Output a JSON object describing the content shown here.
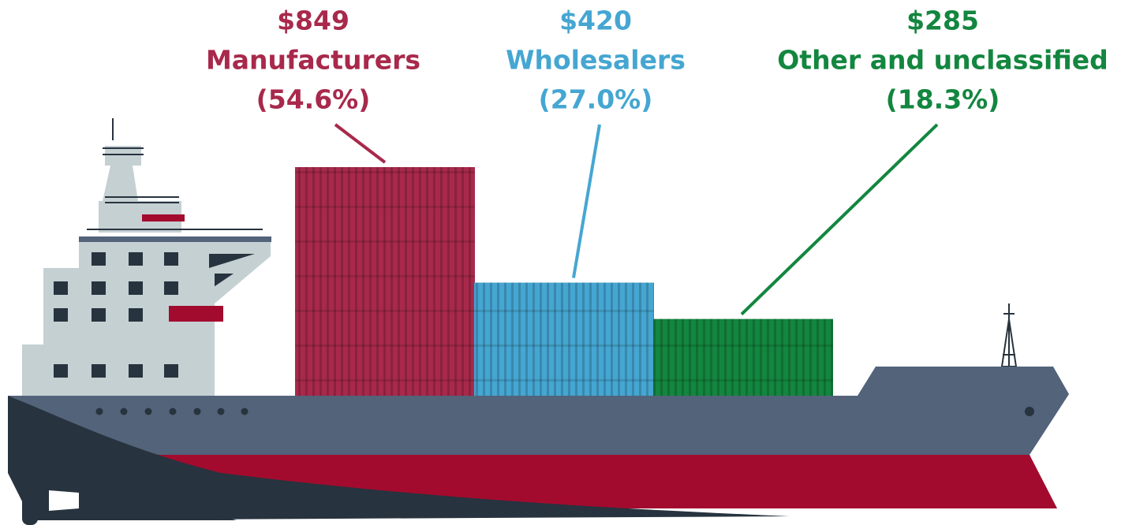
{
  "chart_data": {
    "type": "bar",
    "categories": [
      "Manufacturers",
      "Wholesalers",
      "Other and unclassified"
    ],
    "values": [
      849,
      420,
      285
    ],
    "value_labels": [
      "$849",
      "$420",
      "$285"
    ],
    "percent_labels": [
      "(54.6%)",
      "(27.0%)",
      "(18.3%)"
    ],
    "colors": [
      "#a8294b",
      "#45a6d2",
      "#13863f"
    ]
  }
}
